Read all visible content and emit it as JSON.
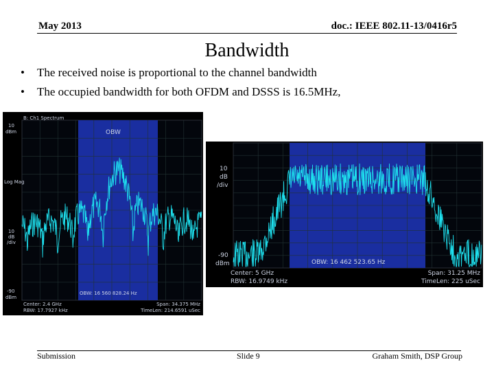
{
  "header": {
    "date": "May 2013",
    "doc_id": "doc.: IEEE 802.11-13/0416r5"
  },
  "slide_title": "Bandwidth",
  "bullets": [
    "The received noise is proportional to the channel bandwidth",
    "The occupied bandwidth for both OFDM and DSSS is 16.5MHz,"
  ],
  "spectrum_left": {
    "panel_title": "B: Ch1 Spectrum",
    "ref_top": "10",
    "ref_top_unit": "dBm",
    "scale_type": "Log Mag",
    "div_value": "10",
    "div_unit_1": "dB",
    "div_unit_2": "/div",
    "ref_bottom": "-90",
    "ref_bottom_unit": "dBm",
    "obw_label": "OBW",
    "obw_readout": "OBW: 16 560 828.24 Hz",
    "center": "Center: 2.4 GHz",
    "rbw": "RBW: 17.7927 kHz",
    "span": "Span: 34.375 MHz",
    "timelen": "TimeLen: 214.6591 uSec",
    "colors": {
      "trace": "#1ee0ee",
      "obw_band": "#1a2ea0",
      "background": "#000000"
    }
  },
  "spectrum_right": {
    "div_value": "10",
    "div_unit_1": "dB",
    "div_unit_2": "/div",
    "ref_bottom": "-90",
    "ref_bottom_unit": "dBm",
    "obw_readout": "OBW:  16 462 523.65 Hz",
    "center": "Center: 5 GHz",
    "rbw": "RBW: 16.9749 kHz",
    "span": "Span: 31.25 MHz",
    "timelen": "TimeLen: 225 uSec",
    "colors": {
      "trace": "#1ee0ee",
      "obw_band": "#1a2ea0",
      "background": "#000000"
    }
  },
  "footer": {
    "left": "Submission",
    "center": "Slide 9",
    "right": "Graham Smith, DSP Group"
  }
}
